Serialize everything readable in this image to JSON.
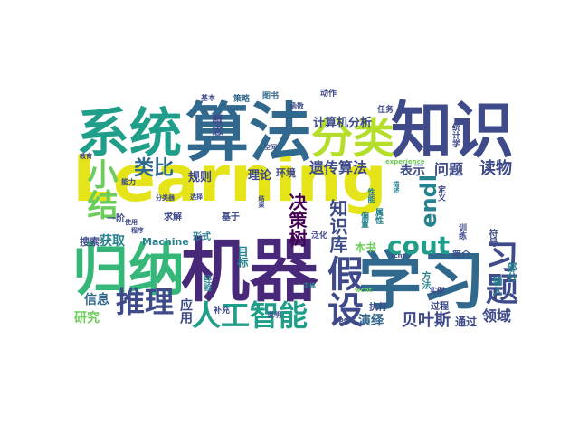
{
  "palette": {
    "yellow": "#e4e419",
    "green": "#35b779",
    "lightgreen": "#6ccd5a",
    "teal": "#1f9e89",
    "cyan": "#26828e",
    "blue": "#31688e",
    "navy": "#3e4a89",
    "purple": "#482878",
    "dark": "#440154"
  },
  "words": [
    "Learning",
    "算法",
    "知识",
    "系统",
    "机器",
    "学习",
    "归纳",
    "假设",
    "分类",
    "人工智能",
    "推理",
    "cout",
    "endl",
    "习题",
    "类比",
    "小结",
    "知识库",
    "决策树",
    "遗传算法",
    "贝叶斯",
    "计算机分析",
    "表示",
    "问题",
    "读物",
    "规则",
    "理论",
    "环境",
    "信息",
    "获取",
    "研究",
    "应用",
    "演绎",
    "领域",
    "通过",
    "本书",
    "目标",
    "概念",
    "Machine",
    "求解",
    "一阶",
    "搜索",
    "基于",
    "形式",
    "方法",
    "输入",
    "部分",
    "符号",
    "简介",
    "过程",
    "执行",
    "属性",
    "图书",
    "策略",
    "动作",
    "任务",
    "统计学",
    "定义",
    "实例",
    "训练",
    "说明",
    "补充",
    "经验",
    "基本",
    "函数",
    "泛化",
    "偏置",
    "分类器",
    "rcnt",
    "wcnt",
    "oper",
    "experience",
    "能力",
    "使用",
    "教育",
    "程序",
    "选择",
    "结果",
    "性能",
    "描述",
    "主体",
    "空间"
  ]
}
